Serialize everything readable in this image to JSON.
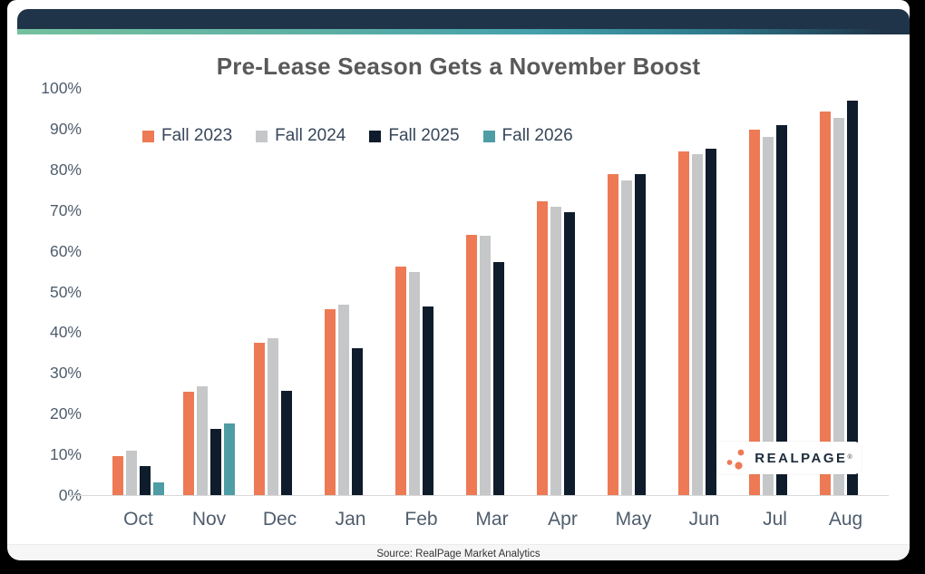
{
  "chart_data": {
    "type": "bar",
    "title": "Pre-Lease Season Gets a November Boost",
    "categories": [
      "Oct",
      "Nov",
      "Dec",
      "Jan",
      "Feb",
      "Mar",
      "Apr",
      "May",
      "Jun",
      "Jul",
      "Aug"
    ],
    "series": [
      {
        "name": "Fall 2023",
        "color": "#ED7A54",
        "values": [
          9.5,
          25.3,
          37.4,
          45.7,
          56.1,
          63.9,
          72.1,
          78.8,
          84.5,
          89.8,
          94.2
        ]
      },
      {
        "name": "Fall 2024",
        "color": "#C5C7C9",
        "values": [
          11.0,
          26.8,
          38.5,
          46.7,
          54.8,
          63.7,
          70.8,
          77.3,
          83.7,
          88.0,
          92.6
        ]
      },
      {
        "name": "Fall 2025",
        "color": "#0E1C2B",
        "values": [
          7.2,
          16.3,
          25.7,
          36.0,
          46.4,
          57.3,
          69.6,
          78.9,
          85.1,
          90.8,
          96.8
        ]
      },
      {
        "name": "Fall 2026",
        "color": "#4E9DA5",
        "values": [
          3.2,
          17.5,
          null,
          null,
          null,
          null,
          null,
          null,
          null,
          null,
          null
        ]
      }
    ],
    "ylim": [
      0,
      100
    ],
    "yticks": [
      "0%",
      "10%",
      "20%",
      "30%",
      "40%",
      "50%",
      "60%",
      "70%",
      "80%",
      "90%",
      "100%"
    ],
    "ytick_step": 10,
    "grid": false,
    "legend_position": "top-left"
  },
  "logo": {
    "text": "REALPAGE",
    "registered_mark": "®",
    "dot_color": "#ED7A54"
  },
  "footer": {
    "source": "Source: RealPage Market Analytics"
  },
  "colors": {
    "header_bar": "#203449",
    "accent_gradient_start": "#74C19E",
    "accent_gradient_mid": "#44A0AB",
    "accent_gradient_end": "#203449",
    "card_background": "#FFFFFF",
    "outer_background": "#000000",
    "title_text": "#595959",
    "axis_text": "#4F5D6D",
    "source_strip": "#F6F6F6"
  }
}
